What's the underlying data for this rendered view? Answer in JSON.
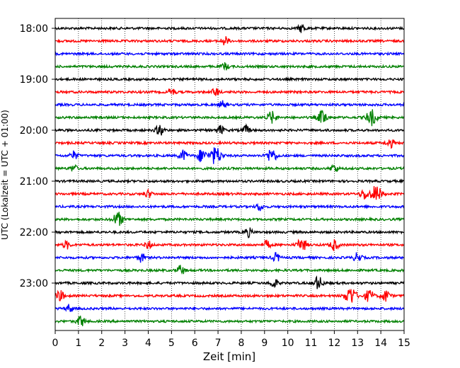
{
  "chart_data": {
    "type": "line",
    "title": "",
    "xlabel": "Zeit  [min]",
    "ylabel": "UTC (Lokalzeit = UTC + 01:00)",
    "xlim": [
      0,
      15
    ],
    "x_ticks": [
      0,
      1,
      2,
      3,
      4,
      5,
      6,
      7,
      8,
      9,
      10,
      11,
      12,
      13,
      14,
      15
    ],
    "x_grid": "dotted vertical at each minute",
    "y_tick_labels": [
      "18:00",
      "19:00",
      "20:00",
      "21:00",
      "22:00",
      "23:00"
    ],
    "traces_per_hour": 4,
    "trace_interval_min": 15,
    "color_cycle": [
      "#000000",
      "#ff0000",
      "#0000ff",
      "#008000"
    ],
    "traces": [
      {
        "start": "18:00",
        "color": "#000000",
        "events": [
          [
            10.6,
            1.4
          ]
        ]
      },
      {
        "start": "18:15",
        "color": "#ff0000",
        "events": [
          [
            7.3,
            1.5
          ]
        ]
      },
      {
        "start": "18:30",
        "color": "#0000ff",
        "events": []
      },
      {
        "start": "18:45",
        "color": "#008000",
        "events": [
          [
            7.3,
            1.2
          ]
        ]
      },
      {
        "start": "19:00",
        "color": "#000000",
        "events": []
      },
      {
        "start": "19:15",
        "color": "#ff0000",
        "events": [
          [
            5.0,
            1.3
          ],
          [
            6.9,
            1.4
          ]
        ]
      },
      {
        "start": "19:30",
        "color": "#0000ff",
        "events": [
          [
            7.2,
            1.2
          ]
        ]
      },
      {
        "start": "19:45",
        "color": "#008000",
        "events": [
          [
            9.3,
            2.0
          ],
          [
            11.5,
            2.4
          ],
          [
            13.6,
            2.6
          ]
        ]
      },
      {
        "start": "20:00",
        "color": "#000000",
        "events": [
          [
            4.5,
            1.8
          ],
          [
            7.1,
            1.5
          ],
          [
            8.2,
            1.5
          ]
        ]
      },
      {
        "start": "20:15",
        "color": "#ff0000",
        "events": [
          [
            14.4,
            1.5
          ]
        ]
      },
      {
        "start": "20:30",
        "color": "#0000ff",
        "events": [
          [
            0.8,
            1.4
          ],
          [
            5.5,
            1.8
          ],
          [
            6.3,
            2.2
          ],
          [
            6.9,
            3.0
          ],
          [
            9.3,
            2.4
          ]
        ]
      },
      {
        "start": "20:45",
        "color": "#008000",
        "events": [
          [
            0.8,
            1.2
          ],
          [
            12.0,
            1.4
          ]
        ]
      },
      {
        "start": "21:00",
        "color": "#000000",
        "events": []
      },
      {
        "start": "21:15",
        "color": "#ff0000",
        "events": [
          [
            4.0,
            1.3
          ],
          [
            13.3,
            1.8
          ],
          [
            13.8,
            2.8
          ]
        ]
      },
      {
        "start": "21:30",
        "color": "#0000ff",
        "events": [
          [
            8.8,
            1.3
          ]
        ]
      },
      {
        "start": "21:45",
        "color": "#008000",
        "events": [
          [
            2.7,
            2.4
          ]
        ]
      },
      {
        "start": "22:00",
        "color": "#000000",
        "events": [
          [
            8.3,
            1.5
          ]
        ]
      },
      {
        "start": "22:15",
        "color": "#ff0000",
        "events": [
          [
            0.5,
            1.3
          ],
          [
            4.0,
            1.3
          ],
          [
            9.1,
            1.4
          ],
          [
            10.6,
            2.2
          ],
          [
            12.0,
            1.8
          ]
        ]
      },
      {
        "start": "22:30",
        "color": "#0000ff",
        "events": [
          [
            3.7,
            1.5
          ],
          [
            9.5,
            1.5
          ],
          [
            13.0,
            1.6
          ]
        ]
      },
      {
        "start": "22:45",
        "color": "#008000",
        "events": [
          [
            5.4,
            1.6
          ]
        ]
      },
      {
        "start": "23:00",
        "color": "#000000",
        "events": [
          [
            9.4,
            1.5
          ],
          [
            11.3,
            2.2
          ]
        ]
      },
      {
        "start": "23:15",
        "color": "#ff0000",
        "events": [
          [
            0.2,
            1.8
          ],
          [
            12.7,
            3.0
          ],
          [
            13.5,
            2.0
          ],
          [
            14.2,
            2.0
          ]
        ]
      },
      {
        "start": "23:30",
        "color": "#0000ff",
        "events": [
          [
            0.6,
            1.3
          ]
        ]
      },
      {
        "start": "23:45",
        "color": "#008000",
        "events": [
          [
            1.1,
            1.8
          ]
        ]
      }
    ]
  }
}
